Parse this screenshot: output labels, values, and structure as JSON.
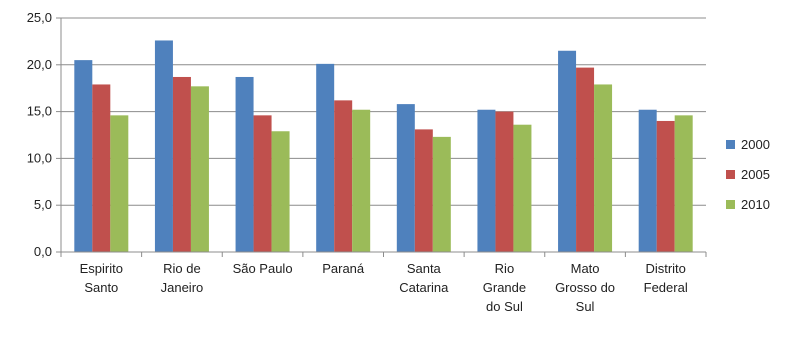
{
  "chart_data": {
    "type": "bar",
    "title": "",
    "xlabel": "",
    "ylabel": "",
    "ylim": [
      0,
      25
    ],
    "yticks": [
      "0,0",
      "5,0",
      "10,0",
      "15,0",
      "20,0",
      "25,0"
    ],
    "grid": true,
    "legend_position": "right",
    "categories": [
      [
        "Espirito",
        "Santo"
      ],
      [
        "Rio de",
        "Janeiro"
      ],
      [
        "São Paulo"
      ],
      [
        "Paraná"
      ],
      [
        "Santa",
        "Catarina"
      ],
      [
        "Rio",
        "Grande",
        "do Sul"
      ],
      [
        "Mato",
        "Grosso do",
        "Sul"
      ],
      [
        "Distrito",
        "Federal"
      ]
    ],
    "series": [
      {
        "name": "2000",
        "color": "#4F81BD",
        "values": [
          20.5,
          22.6,
          18.7,
          20.1,
          15.8,
          15.2,
          21.5,
          15.2
        ]
      },
      {
        "name": "2005",
        "color": "#C0504D",
        "values": [
          17.9,
          18.7,
          14.6,
          16.2,
          13.1,
          15.0,
          19.7,
          14.0
        ]
      },
      {
        "name": "2010",
        "color": "#9BBB59",
        "values": [
          14.6,
          17.7,
          12.9,
          15.2,
          12.3,
          13.6,
          17.9,
          14.6
        ]
      }
    ]
  }
}
